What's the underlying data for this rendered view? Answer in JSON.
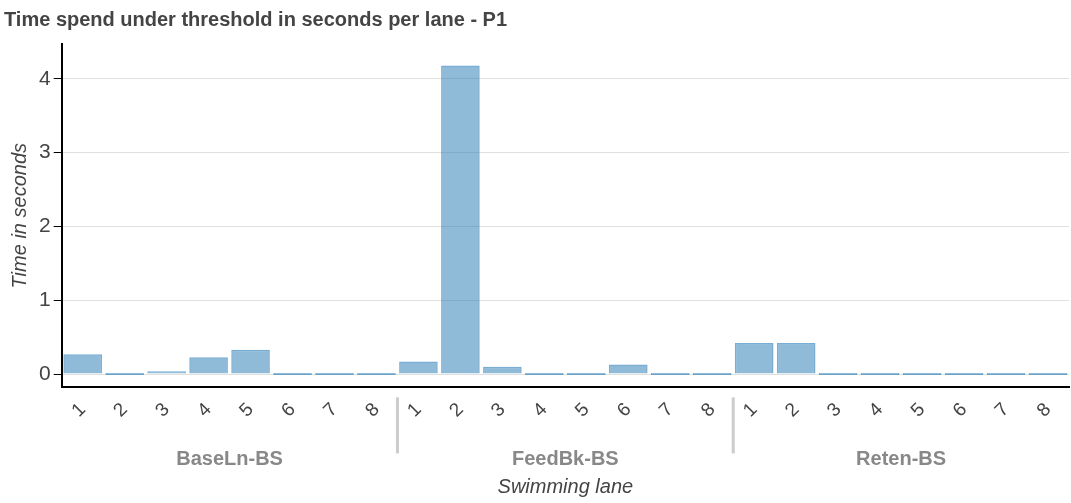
{
  "chart_data": {
    "type": "bar",
    "title": "Time spend under threshold in seconds per lane - P1",
    "xlabel": "Swimming lane",
    "ylabel": "Time in seconds",
    "categories": [
      "1",
      "2",
      "3",
      "4",
      "5",
      "6",
      "7",
      "8",
      "1",
      "2",
      "3",
      "4",
      "5",
      "6",
      "7",
      "8",
      "1",
      "2",
      "3",
      "4",
      "5",
      "6",
      "7",
      "8"
    ],
    "values": [
      0.27,
      0,
      0.04,
      0.23,
      0.33,
      0,
      0,
      0,
      0.17,
      4.18,
      0.1,
      0,
      0,
      0.13,
      0,
      0,
      0.42,
      0.42,
      0,
      0,
      0,
      0,
      0,
      0
    ],
    "color": "#1f77b4",
    "annotations": [
      "BaseLn-BS",
      "FeedBk-BS",
      "Reten-BS"
    ],
    "ylim": [
      -0.18,
      4.47
    ],
    "yticks": [
      0,
      1,
      2,
      3,
      4
    ],
    "grid": "y",
    "legend": false
  }
}
